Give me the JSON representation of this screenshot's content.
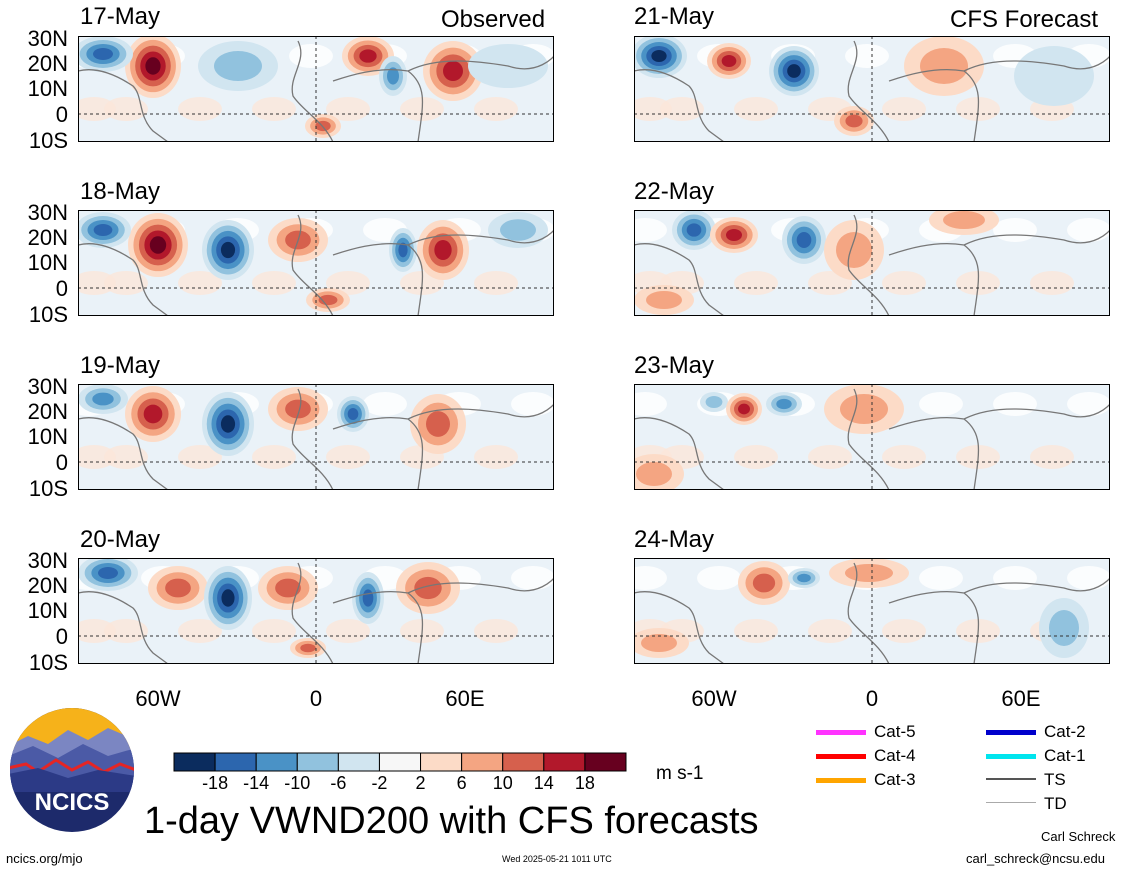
{
  "panels": {
    "left_header": "Observed",
    "right_header": "CFS Forecast",
    "left_dates": [
      "17-May",
      "18-May",
      "19-May",
      "20-May"
    ],
    "right_dates": [
      "21-May",
      "22-May",
      "23-May",
      "24-May"
    ]
  },
  "axes": {
    "lat_labels": [
      "30N",
      "20N",
      "10N",
      "0",
      "10S"
    ],
    "lon_labels": [
      "60W",
      "0",
      "60E"
    ]
  },
  "colorbar": {
    "colors": [
      "#0b2c5e",
      "#2c66ae",
      "#4a92c6",
      "#91c2de",
      "#d1e5f0",
      "#f7f7f7",
      "#fcdbc7",
      "#f4a582",
      "#d6604d",
      "#b2182b",
      "#67001f"
    ],
    "tick_labels": [
      "-18",
      "-14",
      "-10",
      "-6",
      "-2",
      "2",
      "6",
      "10",
      "14",
      "18"
    ],
    "units": "m s-1"
  },
  "legend": {
    "items": [
      {
        "label": "Cat-5",
        "color": "#ff33ff"
      },
      {
        "label": "Cat-4",
        "color": "#ff0000"
      },
      {
        "label": "Cat-3",
        "color": "#ffa500"
      },
      {
        "label": "Cat-2",
        "color": "#0000cc"
      },
      {
        "label": "Cat-1",
        "color": "#00e5ee"
      },
      {
        "label": "TS",
        "color": "#555555"
      },
      {
        "label": "TD",
        "color": "#aaaaaa"
      }
    ]
  },
  "logo": {
    "text": "NCICS"
  },
  "title": "1-day VWND200 with CFS forecasts",
  "footer": {
    "url": "ncics.org/mjo",
    "timestamp": "Wed 2025-05-21 1011 UTC",
    "author": "Carl Schreck",
    "email": "carl_schreck@ncsu.edu"
  }
}
